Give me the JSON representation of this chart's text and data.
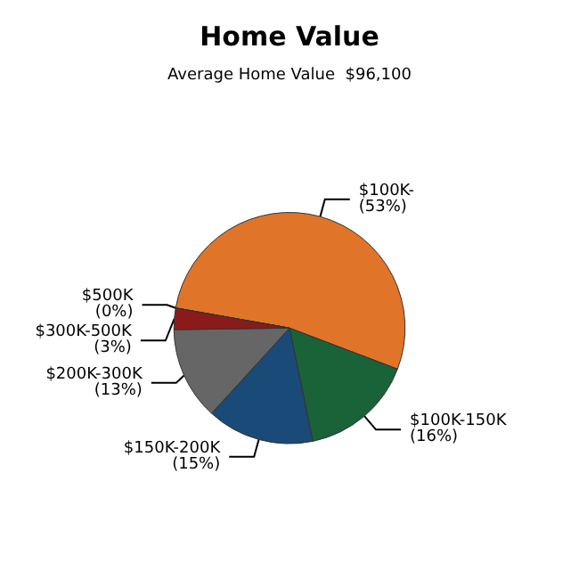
{
  "chart_data": {
    "type": "pie",
    "title": "Home Value",
    "subtitle": "Average Home Value  $96,100",
    "categories": [
      "$100K-",
      "$100K-150K",
      "$150K-200K",
      "$200K-300K",
      "$300K-500K",
      "$500K"
    ],
    "values": [
      53,
      16,
      15,
      13,
      3,
      0
    ],
    "value_labels": [
      "(53%)",
      "(16%)",
      "(15%)",
      "(13%)",
      "(3%)",
      "(0%)"
    ],
    "colors": [
      "#e07428",
      "#1a6238",
      "#1a4a78",
      "#666666",
      "#8b1a1a",
      "#c8a040"
    ]
  }
}
